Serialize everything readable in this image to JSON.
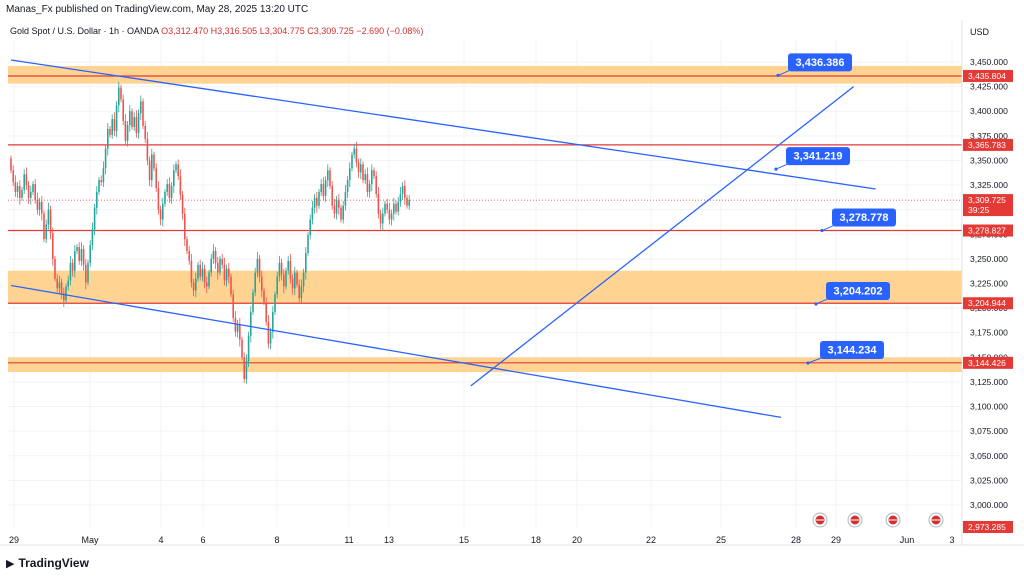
{
  "header": {
    "text": "Manas_Fx published on TradingView.com, May 28, 2025 13:20 UTC"
  },
  "legend": {
    "symbol": "Gold Spot / U.S. Dollar · 1h · OANDA",
    "open": "O3,312.470",
    "high": "H3,316.505",
    "low": "L3,304.775",
    "close": "C3,309.725",
    "change": "−2.690 (−0.08%)"
  },
  "currency": "USD",
  "footer": {
    "brand": "TradingView"
  },
  "colors": {
    "up": "#26a69a",
    "down": "#ef5350",
    "zone": "#ffcc80",
    "zone_line": "#e53935",
    "trend": "#2962ff",
    "callout": "#2962ff"
  },
  "chart_data": {
    "type": "candlestick",
    "timeframe": "1h",
    "y_axis": {
      "ylim": [
        2973.285,
        3470
      ],
      "ticks": [
        "3,450.000",
        "3,425.000",
        "3,400.000",
        "3,375.000",
        "3,350.000",
        "3,325.000",
        "3,300.000",
        "3,275.000",
        "3,250.000",
        "3,225.000",
        "3,200.000",
        "3,175.000",
        "3,150.000",
        "3,125.000",
        "3,100.000",
        "3,075.000",
        "3,050.000",
        "3,025.000",
        "3,000.000"
      ]
    },
    "x_axis": {
      "ticks": [
        "29",
        "May",
        "4",
        "6",
        "8",
        "11",
        "13",
        "15",
        "18",
        "20",
        "22",
        "25",
        "28",
        "29",
        "Jun",
        "3"
      ]
    },
    "price_labels": [
      {
        "value": 3435.804,
        "text": "3,435.804",
        "color": "#e53935"
      },
      {
        "value": 3365.783,
        "text": "3,365.783",
        "color": "#e53935"
      },
      {
        "value": 3309.725,
        "text": "3,309.725",
        "sub": "39:25",
        "color": "#e53935"
      },
      {
        "value": 3278.827,
        "text": "3,278.827",
        "color": "#e53935"
      },
      {
        "value": 3204.944,
        "text": "3,204.944",
        "color": "#e53935"
      },
      {
        "value": 3144.426,
        "text": "3,144.426",
        "color": "#e53935"
      },
      {
        "value": 2973.285,
        "text": "2,973.285",
        "color": "#e53935"
      }
    ],
    "zones": [
      {
        "from": 3428,
        "to": 3446
      },
      {
        "from": 3204.944,
        "to": 3238
      },
      {
        "from": 3135,
        "to": 3150
      }
    ],
    "levels": [
      3435.804,
      3365.783,
      3278.827,
      3204.944,
      3144.426
    ],
    "callouts": [
      {
        "text": "3,436.386",
        "value": 3436.386
      },
      {
        "text": "3,341.219",
        "value": 3341.219
      },
      {
        "text": "3,278.778",
        "value": 3278.778
      },
      {
        "text": "3,204.202",
        "value": 3204.202
      },
      {
        "text": "3,144.234",
        "value": 3144.234
      }
    ],
    "trendlines": [
      {
        "name": "upper-channel",
        "from": {
          "bar": 0,
          "value": 3452
        },
        "to": {
          "bar": 393,
          "value": 3321
        }
      },
      {
        "name": "lower-channel",
        "from": {
          "bar": 0,
          "value": 3223
        },
        "to": {
          "bar": 350,
          "value": 3089
        }
      },
      {
        "name": "rising-support",
        "from": {
          "bar": 209,
          "value": 3121
        },
        "to": {
          "bar": 383,
          "value": 3425
        }
      }
    ],
    "candles": [
      [
        3352,
        3340
      ],
      [
        3340,
        3328
      ],
      [
        3328,
        3318
      ],
      [
        3318,
        3324
      ],
      [
        3324,
        3312
      ],
      [
        3312,
        3320
      ],
      [
        3320,
        3336
      ],
      [
        3336,
        3325
      ],
      [
        3325,
        3312
      ],
      [
        3312,
        3318
      ],
      [
        3318,
        3326
      ],
      [
        3326,
        3310
      ],
      [
        3310,
        3300
      ],
      [
        3300,
        3308
      ],
      [
        3308,
        3296
      ],
      [
        3296,
        3270
      ],
      [
        3270,
        3285
      ],
      [
        3285,
        3300
      ],
      [
        3300,
        3276
      ],
      [
        3276,
        3250
      ],
      [
        3250,
        3230
      ],
      [
        3230,
        3220
      ],
      [
        3220,
        3226
      ],
      [
        3226,
        3215
      ],
      [
        3215,
        3208
      ],
      [
        3208,
        3222
      ],
      [
        3222,
        3228
      ],
      [
        3228,
        3246
      ],
      [
        3246,
        3238
      ],
      [
        3238,
        3258
      ],
      [
        3258,
        3262
      ],
      [
        3262,
        3248
      ],
      [
        3248,
        3260
      ],
      [
        3260,
        3244
      ],
      [
        3244,
        3226
      ],
      [
        3226,
        3246
      ],
      [
        3246,
        3264
      ],
      [
        3264,
        3280
      ],
      [
        3280,
        3302
      ],
      [
        3302,
        3318
      ],
      [
        3318,
        3330
      ],
      [
        3330,
        3328
      ],
      [
        3328,
        3342
      ],
      [
        3342,
        3362
      ],
      [
        3362,
        3382
      ],
      [
        3382,
        3376
      ],
      [
        3376,
        3392
      ],
      [
        3392,
        3380
      ],
      [
        3380,
        3406
      ],
      [
        3406,
        3424
      ],
      [
        3424,
        3412
      ],
      [
        3412,
        3390
      ],
      [
        3390,
        3370
      ],
      [
        3370,
        3386
      ],
      [
        3386,
        3400
      ],
      [
        3400,
        3384
      ],
      [
        3384,
        3394
      ],
      [
        3394,
        3378
      ],
      [
        3378,
        3398
      ],
      [
        3398,
        3410
      ],
      [
        3410,
        3385
      ],
      [
        3385,
        3372
      ],
      [
        3372,
        3350
      ],
      [
        3350,
        3330
      ],
      [
        3330,
        3356
      ],
      [
        3356,
        3342
      ],
      [
        3342,
        3322
      ],
      [
        3322,
        3300
      ],
      [
        3300,
        3290
      ],
      [
        3290,
        3306
      ],
      [
        3306,
        3318
      ],
      [
        3318,
        3326
      ],
      [
        3326,
        3312
      ],
      [
        3312,
        3324
      ],
      [
        3324,
        3340
      ],
      [
        3340,
        3346
      ],
      [
        3346,
        3334
      ],
      [
        3334,
        3315
      ],
      [
        3315,
        3296
      ],
      [
        3296,
        3270
      ],
      [
        3270,
        3258
      ],
      [
        3258,
        3248
      ],
      [
        3248,
        3226
      ],
      [
        3226,
        3218
      ],
      [
        3218,
        3230
      ],
      [
        3230,
        3244
      ],
      [
        3244,
        3232
      ],
      [
        3232,
        3240
      ],
      [
        3240,
        3226
      ],
      [
        3226,
        3222
      ],
      [
        3222,
        3236
      ],
      [
        3236,
        3250
      ],
      [
        3250,
        3258
      ],
      [
        3258,
        3246
      ],
      [
        3246,
        3236
      ],
      [
        3236,
        3250
      ],
      [
        3250,
        3244
      ],
      [
        3244,
        3228
      ],
      [
        3228,
        3240
      ],
      [
        3240,
        3232
      ],
      [
        3232,
        3214
      ],
      [
        3214,
        3190
      ],
      [
        3190,
        3176
      ],
      [
        3176,
        3184
      ],
      [
        3184,
        3168
      ],
      [
        3168,
        3150
      ],
      [
        3150,
        3128
      ],
      [
        3128,
        3146
      ],
      [
        3146,
        3172
      ],
      [
        3172,
        3196
      ],
      [
        3196,
        3216
      ],
      [
        3216,
        3236
      ],
      [
        3236,
        3250
      ],
      [
        3250,
        3232
      ],
      [
        3232,
        3218
      ],
      [
        3218,
        3206
      ],
      [
        3206,
        3186
      ],
      [
        3186,
        3164
      ],
      [
        3164,
        3176
      ],
      [
        3176,
        3196
      ],
      [
        3196,
        3214
      ],
      [
        3214,
        3232
      ],
      [
        3232,
        3246
      ],
      [
        3246,
        3234
      ],
      [
        3234,
        3222
      ],
      [
        3222,
        3238
      ],
      [
        3238,
        3248
      ],
      [
        3248,
        3230
      ],
      [
        3230,
        3220
      ],
      [
        3220,
        3236
      ],
      [
        3236,
        3224
      ],
      [
        3224,
        3210
      ],
      [
        3210,
        3222
      ],
      [
        3222,
        3236
      ],
      [
        3236,
        3256
      ],
      [
        3256,
        3274
      ],
      [
        3274,
        3290
      ],
      [
        3290,
        3302
      ],
      [
        3302,
        3312
      ],
      [
        3312,
        3304
      ],
      [
        3304,
        3318
      ],
      [
        3318,
        3326
      ],
      [
        3326,
        3314
      ],
      [
        3314,
        3330
      ],
      [
        3330,
        3340
      ],
      [
        3340,
        3324
      ],
      [
        3324,
        3304
      ],
      [
        3304,
        3296
      ],
      [
        3296,
        3310
      ],
      [
        3310,
        3302
      ],
      [
        3302,
        3290
      ],
      [
        3290,
        3304
      ],
      [
        3304,
        3318
      ],
      [
        3318,
        3330
      ],
      [
        3330,
        3342
      ],
      [
        3342,
        3356
      ],
      [
        3356,
        3362
      ],
      [
        3362,
        3348
      ],
      [
        3348,
        3338
      ],
      [
        3338,
        3346
      ],
      [
        3346,
        3330
      ],
      [
        3330,
        3336
      ],
      [
        3336,
        3318
      ],
      [
        3318,
        3326
      ],
      [
        3326,
        3340
      ],
      [
        3340,
        3334
      ],
      [
        3334,
        3316
      ],
      [
        3316,
        3296
      ],
      [
        3296,
        3286
      ],
      [
        3286,
        3296
      ],
      [
        3296,
        3306
      ],
      [
        3306,
        3300
      ],
      [
        3300,
        3290
      ],
      [
        3290,
        3296
      ],
      [
        3296,
        3306
      ],
      [
        3306,
        3298
      ],
      [
        3298,
        3308
      ],
      [
        3308,
        3316
      ],
      [
        3316,
        3324
      ],
      [
        3324,
        3312
      ],
      [
        3312,
        3304
      ],
      [
        3304,
        3310
      ]
    ]
  }
}
